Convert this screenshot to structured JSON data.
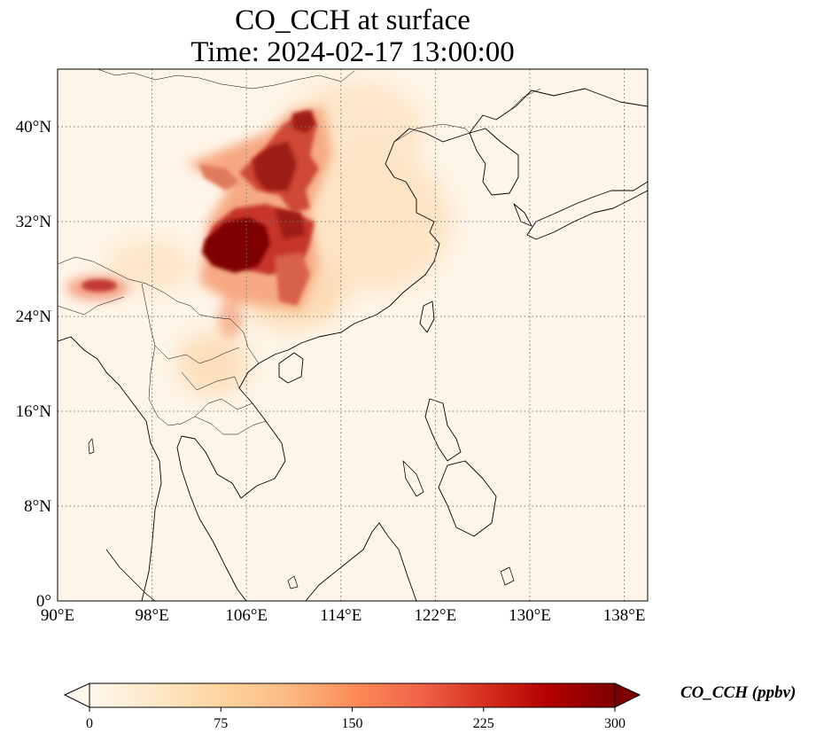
{
  "title": {
    "line1": "CO_CCH at surface",
    "line2": "Time: 2024-02-17 13:00:00"
  },
  "map": {
    "projection": "PlateCarree",
    "lon_range": [
      90,
      140
    ],
    "lat_range": [
      0,
      44
    ],
    "gridlines": "dotted",
    "lon_ticks": [
      "90°E",
      "98°E",
      "106°E",
      "114°E",
      "122°E",
      "130°E",
      "138°E"
    ],
    "lat_ticks": [
      "0°",
      "8°N",
      "16°N",
      "24°N",
      "32°N",
      "40°N"
    ],
    "colormap": "OrRd",
    "features": [
      "coastlines",
      "country-borders"
    ]
  },
  "colorbar": {
    "label": "CO_CCH (ppbv)",
    "ticks": [
      "0",
      "75",
      "150",
      "225",
      "300"
    ],
    "vmin": 0,
    "vmax": 300,
    "extend": "both",
    "colors": [
      "#fff7ec",
      "#fee8c8",
      "#fdd49e",
      "#fdbb84",
      "#fc8d59",
      "#ef6548",
      "#d7301f",
      "#b30000",
      "#7f0000"
    ]
  }
}
